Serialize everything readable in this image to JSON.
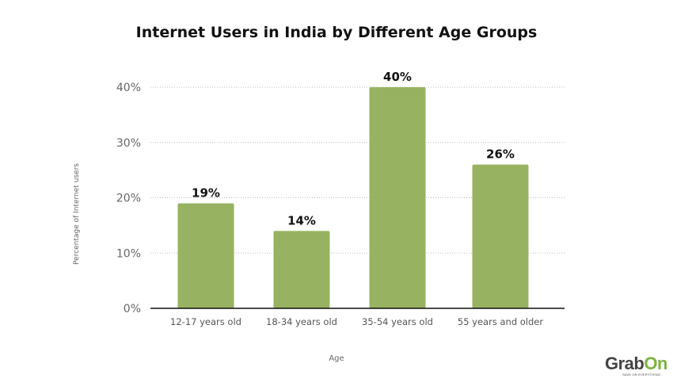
{
  "chart_data": {
    "type": "bar",
    "title": "Internet Users in India by Different Age Groups",
    "xlabel": "Age",
    "ylabel": "Percentage of Internet users",
    "categories": [
      "12-17 years old",
      "18-34 years old",
      "35-54 years old",
      "55 years and older"
    ],
    "values": [
      19,
      14,
      40,
      26
    ],
    "data_labels": [
      "19%",
      "14%",
      "40%",
      "26%"
    ],
    "yticks": [
      "0%",
      "10%",
      "20%",
      "30%",
      "40%"
    ],
    "ylim": [
      0,
      40
    ],
    "grid": true,
    "bar_color": "#97b361"
  },
  "logo": {
    "brand_main": "Grab",
    "brand_accent": "On",
    "tagline": "SAVE ON EVERYTHING",
    "accent_color": "#7cb342"
  }
}
